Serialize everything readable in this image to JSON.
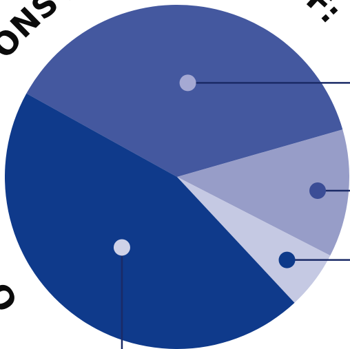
{
  "colors": {
    "background": "#ffffff",
    "text": "#0b0b0b",
    "leader": "#1a2a66"
  },
  "curved_text": {
    "top_left": "ONS A",
    "top_right": "OF:",
    "left": "O"
  },
  "chart_data": {
    "type": "pie",
    "title": "",
    "slices": [
      {
        "value": 37.5,
        "color": "#44589f",
        "marker_color": "#a5a9d3"
      },
      {
        "value": 12.0,
        "color": "#979dc8",
        "marker_color": "#3b4d96"
      },
      {
        "value": 5.5,
        "color": "#c5c9e3",
        "marker_color": "#0e3a8a"
      },
      {
        "value": 45.0,
        "color": "#0f3a8b",
        "marker_color": "#cfd2e8"
      }
    ],
    "start_angle_deg": -151,
    "direction": "clockwise",
    "legend": "none",
    "data_labels": "none"
  }
}
